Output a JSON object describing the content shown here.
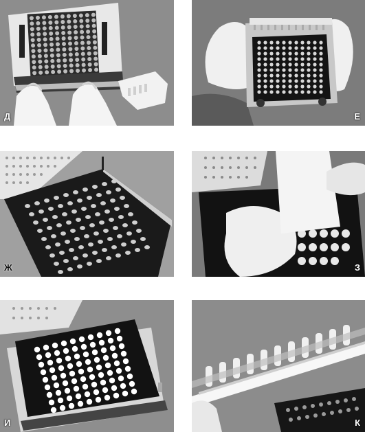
{
  "figure": {
    "panels": [
      {
        "label": "Д",
        "icon": "plate-with-hands-photo"
      },
      {
        "label": "Е",
        "icon": "gloved-hands-holding-plate-photo"
      },
      {
        "label": "Ж",
        "icon": "black-plate-with-wells-photo"
      },
      {
        "label": "З",
        "icon": "powder-spread-card-photo"
      },
      {
        "label": "И",
        "icon": "filled-wells-plate-photo"
      },
      {
        "label": "К",
        "icon": "comb-strip-over-plate-photo"
      }
    ]
  }
}
